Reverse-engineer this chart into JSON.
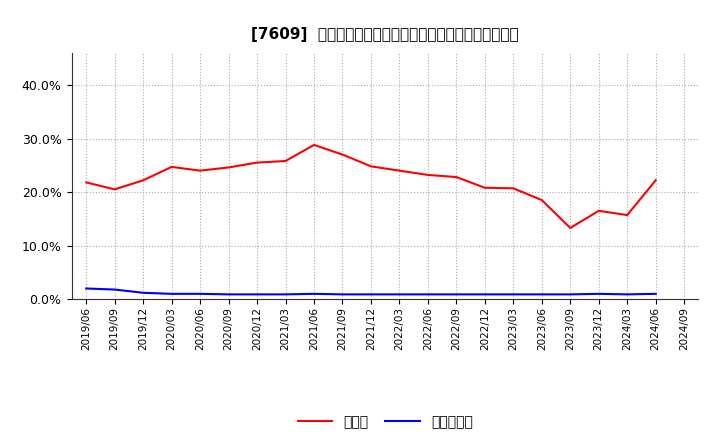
{
  "title": "[7609]  現領金、有利子負債の総資産に対する比率の推移",
  "x_labels": [
    "2019/06",
    "2019/09",
    "2019/12",
    "2020/03",
    "2020/06",
    "2020/09",
    "2020/12",
    "2021/03",
    "2021/06",
    "2021/09",
    "2021/12",
    "2022/03",
    "2022/06",
    "2022/09",
    "2022/12",
    "2023/03",
    "2023/06",
    "2023/09",
    "2023/12",
    "2024/03",
    "2024/06",
    "2024/09"
  ],
  "cash_ratio": [
    0.218,
    0.205,
    0.222,
    0.247,
    0.24,
    0.246,
    0.255,
    0.258,
    0.288,
    0.27,
    0.248,
    0.24,
    0.232,
    0.228,
    0.208,
    0.207,
    0.185,
    0.133,
    0.165,
    0.157,
    0.222,
    null
  ],
  "debt_ratio": [
    0.02,
    0.018,
    0.012,
    0.01,
    0.01,
    0.009,
    0.009,
    0.009,
    0.01,
    0.009,
    0.009,
    0.009,
    0.009,
    0.009,
    0.009,
    0.009,
    0.009,
    0.009,
    0.01,
    0.009,
    0.01,
    null
  ],
  "cash_color": "#ff0000",
  "debt_color": "#0000ff",
  "background_color": "#ffffff",
  "grid_color": "#aaaaaa",
  "ylim": [
    0.0,
    0.46
  ],
  "yticks": [
    0.0,
    0.1,
    0.2,
    0.3,
    0.4
  ],
  "legend_cash": "現領金",
  "legend_debt": "有利子負債",
  "title_prefix": "[7609]  ",
  "title_jp": "現領金、有利子負債の総資産に対する比率の推移"
}
